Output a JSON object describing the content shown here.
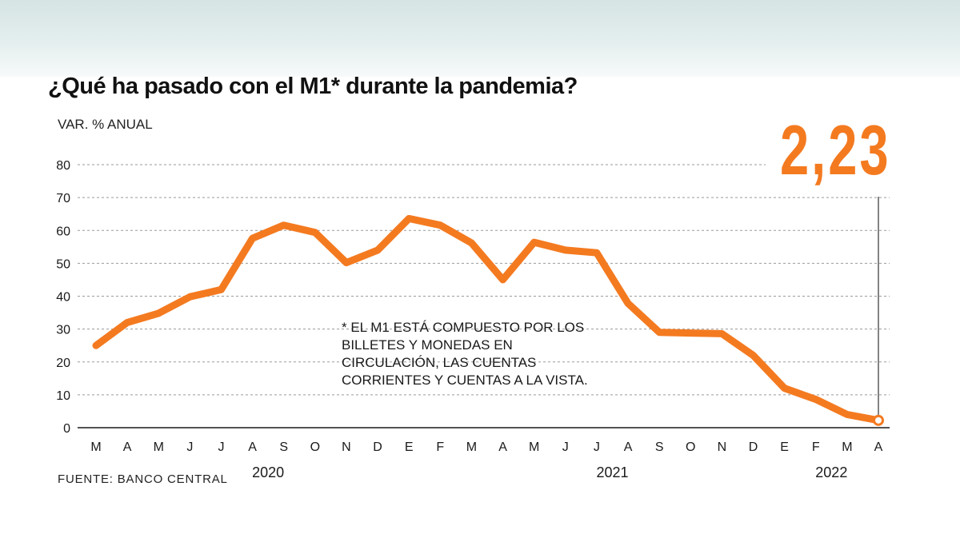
{
  "title": "¿Qué ha pasado con el M1* durante la pandemia?",
  "big_value": "2,23",
  "note": "* EL M1 ESTÁ COMPUESTO POR LOS BILLETES Y MONEDAS EN CIRCULACIÓN, LAS CUENTAS CORRIENTES Y CUENTAS A LA VISTA.",
  "source": "FUENTE: BANCO CENTRAL",
  "colors": {
    "line": "#f47a20",
    "grid": "#9a9a9a",
    "axis": "#1a1a1a",
    "band": "#dde9e9"
  },
  "chart_data": {
    "type": "line",
    "title": "¿Qué ha pasado con el M1* durante la pandemia?",
    "ylabel": "VAR. % ANUAL",
    "ylim": [
      0,
      80
    ],
    "yticks": [
      0,
      10,
      20,
      30,
      40,
      50,
      60,
      70,
      80
    ],
    "grid": true,
    "categories": [
      "M",
      "A",
      "M",
      "J",
      "J",
      "A",
      "S",
      "O",
      "N",
      "D",
      "E",
      "F",
      "M",
      "A",
      "M",
      "J",
      "J",
      "A",
      "S",
      "O",
      "N",
      "D",
      "E",
      "F",
      "M",
      "A"
    ],
    "year_labels": [
      {
        "label": "2020",
        "center_index": 5.5
      },
      {
        "label": "2021",
        "center_index": 16.5
      },
      {
        "label": "2022",
        "center_index": 23.5
      }
    ],
    "series": [
      {
        "values": [
          25,
          32,
          34.8,
          39.8,
          42,
          57.6,
          61.6,
          59.4,
          50.2,
          54,
          63.6,
          61.6,
          56.2,
          45,
          56.4,
          54,
          53.2,
          37.8,
          29,
          28.8,
          28.6,
          22,
          12,
          8.6,
          4,
          2.23
        ]
      }
    ],
    "highlight": {
      "index": 25,
      "value": 2.23,
      "label": "2,23"
    }
  }
}
